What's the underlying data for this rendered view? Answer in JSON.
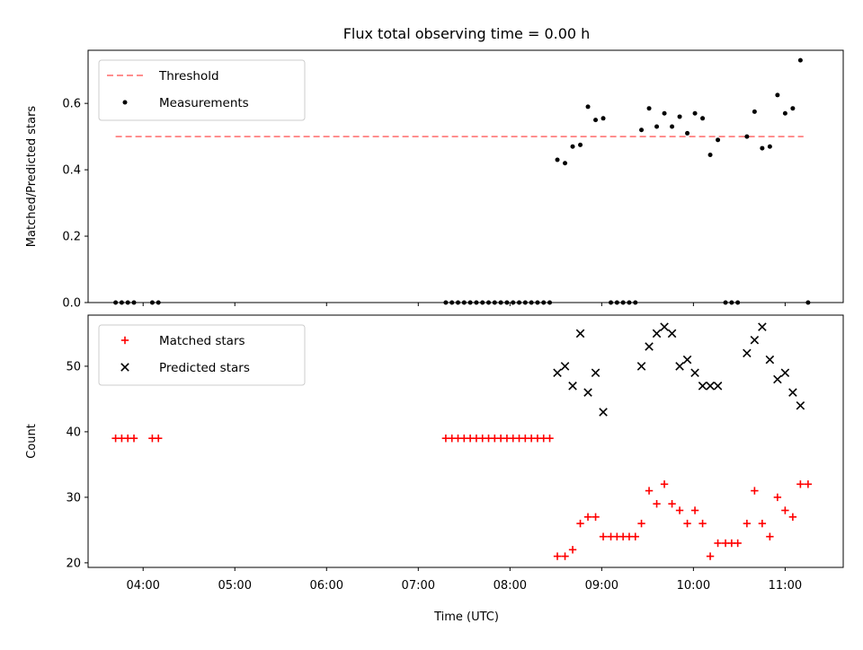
{
  "title": "Flux total observing time = 0.00 h",
  "xlabel": "Time (UTC)",
  "x_ticks": [
    "04:00",
    "05:00",
    "06:00",
    "07:00",
    "08:00",
    "09:00",
    "10:00",
    "11:00"
  ],
  "chart_data": [
    {
      "type": "scatter",
      "panel": "top",
      "ylabel": "Matched/Predicted stars",
      "xlim": [
        "03:24",
        "11:38"
      ],
      "ylim": [
        0,
        0.76
      ],
      "yticks": [
        "0.0",
        "0.2",
        "0.4",
        "0.6"
      ],
      "legend_position": "upper-left",
      "threshold": {
        "name": "Threshold",
        "color": "#ff7f7f",
        "y": 0.5,
        "x_start": "03:42",
        "x_end": "11:12"
      },
      "series": [
        {
          "name": "Measurements",
          "color": "#000000",
          "marker": "dot",
          "points": [
            [
              "03:42",
              0.0
            ],
            [
              "03:46",
              0.0
            ],
            [
              "03:50",
              0.0
            ],
            [
              "03:54",
              0.0
            ],
            [
              "04:06",
              0.0
            ],
            [
              "04:10",
              0.0
            ],
            [
              "07:18",
              0.0
            ],
            [
              "07:22",
              0.0
            ],
            [
              "07:26",
              0.0
            ],
            [
              "07:30",
              0.0
            ],
            [
              "07:34",
              0.0
            ],
            [
              "07:38",
              0.0
            ],
            [
              "07:42",
              0.0
            ],
            [
              "07:46",
              0.0
            ],
            [
              "07:50",
              0.0
            ],
            [
              "07:54",
              0.0
            ],
            [
              "07:58",
              0.0
            ],
            [
              "08:02",
              0.0
            ],
            [
              "08:06",
              0.0
            ],
            [
              "08:10",
              0.0
            ],
            [
              "08:14",
              0.0
            ],
            [
              "08:18",
              0.0
            ],
            [
              "08:22",
              0.0
            ],
            [
              "08:26",
              0.0
            ],
            [
              "08:31",
              0.43
            ],
            [
              "08:36",
              0.42
            ],
            [
              "08:41",
              0.47
            ],
            [
              "08:46",
              0.475
            ],
            [
              "08:51",
              0.59
            ],
            [
              "08:56",
              0.55
            ],
            [
              "09:01",
              0.555
            ],
            [
              "09:06",
              0.0
            ],
            [
              "09:10",
              0.0
            ],
            [
              "09:14",
              0.0
            ],
            [
              "09:18",
              0.0
            ],
            [
              "09:22",
              0.0
            ],
            [
              "09:26",
              0.52
            ],
            [
              "09:31",
              0.585
            ],
            [
              "09:36",
              0.53
            ],
            [
              "09:41",
              0.57
            ],
            [
              "09:46",
              0.53
            ],
            [
              "09:51",
              0.56
            ],
            [
              "09:56",
              0.51
            ],
            [
              "10:01",
              0.57
            ],
            [
              "10:06",
              0.555
            ],
            [
              "10:11",
              0.445
            ],
            [
              "10:16",
              0.49
            ],
            [
              "10:21",
              0.0
            ],
            [
              "10:25",
              0.0
            ],
            [
              "10:29",
              0.0
            ],
            [
              "10:35",
              0.5
            ],
            [
              "10:40",
              0.575
            ],
            [
              "10:45",
              0.465
            ],
            [
              "10:50",
              0.47
            ],
            [
              "10:55",
              0.625
            ],
            [
              "11:00",
              0.57
            ],
            [
              "11:05",
              0.585
            ],
            [
              "11:10",
              0.73
            ],
            [
              "11:15",
              0.0
            ]
          ]
        }
      ]
    },
    {
      "type": "scatter",
      "panel": "bottom",
      "ylabel": "Count",
      "xlim": [
        "03:24",
        "11:38"
      ],
      "ylim": [
        19.3,
        57.8
      ],
      "yticks": [
        "20",
        "30",
        "40",
        "50"
      ],
      "legend_position": "upper-left",
      "series": [
        {
          "name": "Matched stars",
          "color": "#ff0000",
          "marker": "plus",
          "points": [
            [
              "03:42",
              39
            ],
            [
              "03:46",
              39
            ],
            [
              "03:50",
              39
            ],
            [
              "03:54",
              39
            ],
            [
              "04:06",
              39
            ],
            [
              "04:10",
              39
            ],
            [
              "07:18",
              39
            ],
            [
              "07:22",
              39
            ],
            [
              "07:26",
              39
            ],
            [
              "07:30",
              39
            ],
            [
              "07:34",
              39
            ],
            [
              "07:38",
              39
            ],
            [
              "07:42",
              39
            ],
            [
              "07:46",
              39
            ],
            [
              "07:50",
              39
            ],
            [
              "07:54",
              39
            ],
            [
              "07:58",
              39
            ],
            [
              "08:02",
              39
            ],
            [
              "08:06",
              39
            ],
            [
              "08:10",
              39
            ],
            [
              "08:14",
              39
            ],
            [
              "08:18",
              39
            ],
            [
              "08:22",
              39
            ],
            [
              "08:26",
              39
            ],
            [
              "08:31",
              21
            ],
            [
              "08:36",
              21
            ],
            [
              "08:41",
              22
            ],
            [
              "08:46",
              26
            ],
            [
              "08:51",
              27
            ],
            [
              "08:56",
              27
            ],
            [
              "09:01",
              24
            ],
            [
              "09:06",
              24
            ],
            [
              "09:10",
              24
            ],
            [
              "09:14",
              24
            ],
            [
              "09:18",
              24
            ],
            [
              "09:22",
              24
            ],
            [
              "09:26",
              26
            ],
            [
              "09:31",
              31
            ],
            [
              "09:36",
              29
            ],
            [
              "09:41",
              32
            ],
            [
              "09:46",
              29
            ],
            [
              "09:51",
              28
            ],
            [
              "09:56",
              26
            ],
            [
              "10:01",
              28
            ],
            [
              "10:06",
              26
            ],
            [
              "10:11",
              21
            ],
            [
              "10:16",
              23
            ],
            [
              "10:21",
              23
            ],
            [
              "10:25",
              23
            ],
            [
              "10:29",
              23
            ],
            [
              "10:35",
              26
            ],
            [
              "10:40",
              31
            ],
            [
              "10:45",
              26
            ],
            [
              "10:50",
              24
            ],
            [
              "10:55",
              30
            ],
            [
              "11:00",
              28
            ],
            [
              "11:05",
              27
            ],
            [
              "11:10",
              32
            ],
            [
              "11:15",
              32
            ]
          ]
        },
        {
          "name": "Predicted stars",
          "color": "#000000",
          "marker": "x",
          "points": [
            [
              "08:31",
              49
            ],
            [
              "08:36",
              50
            ],
            [
              "08:41",
              47
            ],
            [
              "08:46",
              55
            ],
            [
              "08:51",
              46
            ],
            [
              "08:56",
              49
            ],
            [
              "09:01",
              43
            ],
            [
              "09:26",
              50
            ],
            [
              "09:31",
              53
            ],
            [
              "09:36",
              55
            ],
            [
              "09:41",
              56
            ],
            [
              "09:46",
              55
            ],
            [
              "09:51",
              50
            ],
            [
              "09:56",
              51
            ],
            [
              "10:01",
              49
            ],
            [
              "10:06",
              47
            ],
            [
              "10:11",
              47
            ],
            [
              "10:16",
              47
            ],
            [
              "10:35",
              52
            ],
            [
              "10:40",
              54
            ],
            [
              "10:45",
              56
            ],
            [
              "10:50",
              51
            ],
            [
              "10:55",
              48
            ],
            [
              "11:00",
              49
            ],
            [
              "11:05",
              46
            ],
            [
              "11:10",
              44
            ]
          ]
        }
      ]
    }
  ]
}
